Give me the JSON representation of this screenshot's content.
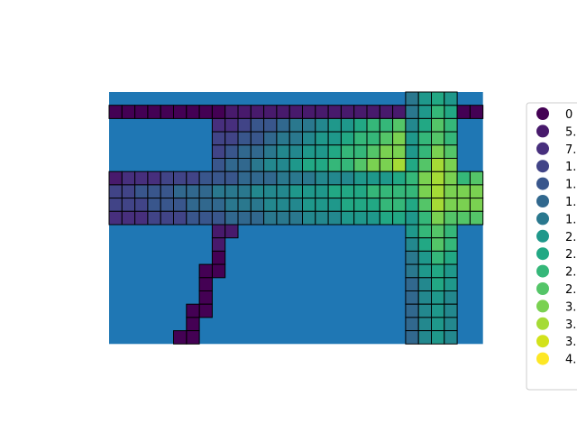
{
  "chart_data": {
    "type": "heatmap",
    "title": "",
    "xlabel": "",
    "ylabel": "",
    "axes_visible": false,
    "background_color": "#1f77b4",
    "colormap": "viridis",
    "cell_edge_color": "#000000",
    "legend": {
      "placement": "right",
      "entries": [
        "0",
        "5.",
        "7.",
        "1.",
        "1.",
        "1.",
        "1.",
        "2.",
        "2.",
        "2.",
        "2.",
        "3.",
        "3.",
        "3.",
        "4."
      ]
    },
    "grid_spec": {
      "columns": 29,
      "rows": 19,
      "horizontal_band": {
        "top_row": {
          "row": 1,
          "col_start": 0,
          "col_end": 28,
          "exclude_cols": [
            23,
            24,
            25
          ]
        },
        "upper_rows": {
          "rows": [
            2,
            3,
            4,
            5
          ],
          "col_start": 8,
          "col_end": 22
        },
        "main_rows": {
          "rows": [
            6,
            7,
            8,
            9
          ],
          "col_start": 0,
          "col_end": 28
        }
      },
      "vertical_band": {
        "rows_start": 0,
        "rows_end": 18,
        "col_start": 23,
        "col_end": 26
      },
      "diagonal_path": [
        [
          10,
          8
        ],
        [
          10,
          9
        ],
        [
          11,
          8
        ],
        [
          12,
          8
        ],
        [
          13,
          8
        ],
        [
          13,
          7
        ],
        [
          14,
          7
        ],
        [
          15,
          7
        ],
        [
          16,
          7
        ],
        [
          16,
          6
        ],
        [
          17,
          6
        ],
        [
          18,
          6
        ],
        [
          18,
          5
        ]
      ]
    }
  }
}
